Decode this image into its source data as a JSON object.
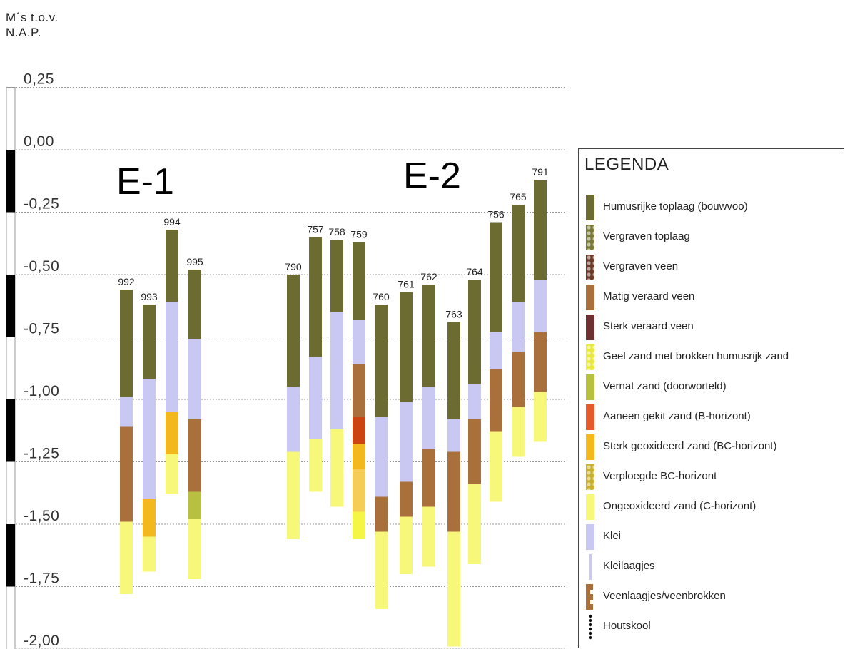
{
  "axis": {
    "unit_label": [
      "M´s  t.o.v.",
      "N.A.P."
    ],
    "ticks": [
      {
        "value": 0.25,
        "label": "0,25"
      },
      {
        "value": 0.0,
        "label": "0,00"
      },
      {
        "value": -0.25,
        "label": "-0,25"
      },
      {
        "value": -0.5,
        "label": "-0,50"
      },
      {
        "value": -0.75,
        "label": "-0,75"
      },
      {
        "value": -1.0,
        "label": "-1,00"
      },
      {
        "value": -1.25,
        "label": "-1,25"
      },
      {
        "value": -1.5,
        "label": "-1,50"
      },
      {
        "value": -1.75,
        "label": "-1,75"
      },
      {
        "value": -2.0,
        "label": "-2,00"
      }
    ]
  },
  "groups": [
    {
      "label": "E-1"
    },
    {
      "label": "E-2"
    }
  ],
  "colors": {
    "humus": "#6b6b32",
    "vergraven_toplaag": "#7a7a3a",
    "vergraven_veen": "#6b3a2a",
    "matig_veen": "#a9703c",
    "sterk_veen": "#6e3030",
    "geel_zand": "#e8e840",
    "vernat_zand": "#b8c040",
    "b_horizont": "#e55a2a",
    "bc_horizont": "#f2b81e",
    "verploegd_bc": "#c8b030",
    "c_horizont": "#f7f77a",
    "klei": "#c8c8f2",
    "kleilaagjes": "#c8c8f2",
    "veenlaagjes": "#a9703c",
    "houtskool": "#111111",
    "b_horizont_bright": "#cc4410",
    "bc_light": "#f5cc55",
    "c_bright": "#f5f545"
  },
  "cores": [
    {
      "id": "992",
      "layers": [
        {
          "top": -0.56,
          "bottom": -0.99,
          "type": "humus"
        },
        {
          "top": -0.99,
          "bottom": -1.11,
          "type": "klei"
        },
        {
          "top": -1.11,
          "bottom": -1.49,
          "type": "matig_veen"
        },
        {
          "top": -1.49,
          "bottom": -1.78,
          "type": "c_horizont"
        }
      ]
    },
    {
      "id": "993",
      "layers": [
        {
          "top": -0.62,
          "bottom": -0.92,
          "type": "humus"
        },
        {
          "top": -0.92,
          "bottom": -1.4,
          "type": "klei"
        },
        {
          "top": -1.4,
          "bottom": -1.55,
          "type": "bc_horizont"
        },
        {
          "top": -1.55,
          "bottom": -1.69,
          "type": "c_horizont"
        }
      ]
    },
    {
      "id": "994",
      "layers": [
        {
          "top": -0.32,
          "bottom": -0.61,
          "type": "humus"
        },
        {
          "top": -0.61,
          "bottom": -1.05,
          "type": "klei"
        },
        {
          "top": -1.05,
          "bottom": -1.22,
          "type": "bc_horizont"
        },
        {
          "top": -1.22,
          "bottom": -1.38,
          "type": "c_horizont"
        }
      ]
    },
    {
      "id": "995",
      "layers": [
        {
          "top": -0.48,
          "bottom": -0.76,
          "type": "humus"
        },
        {
          "top": -0.76,
          "bottom": -1.08,
          "type": "klei"
        },
        {
          "top": -1.08,
          "bottom": -1.37,
          "type": "matig_veen"
        },
        {
          "top": -1.37,
          "bottom": -1.48,
          "type": "vernat_zand"
        },
        {
          "top": -1.48,
          "bottom": -1.72,
          "type": "c_horizont"
        }
      ]
    },
    {
      "id": "790",
      "layers": [
        {
          "top": -0.5,
          "bottom": -0.95,
          "type": "humus"
        },
        {
          "top": -0.95,
          "bottom": -1.21,
          "type": "klei"
        },
        {
          "top": -1.21,
          "bottom": -1.56,
          "type": "c_horizont"
        }
      ]
    },
    {
      "id": "757",
      "layers": [
        {
          "top": -0.35,
          "bottom": -0.83,
          "type": "humus"
        },
        {
          "top": -0.83,
          "bottom": -1.16,
          "type": "klei"
        },
        {
          "top": -1.16,
          "bottom": -1.37,
          "type": "c_horizont"
        }
      ]
    },
    {
      "id": "758",
      "layers": [
        {
          "top": -0.36,
          "bottom": -0.65,
          "type": "humus"
        },
        {
          "top": -0.65,
          "bottom": -1.12,
          "type": "klei"
        },
        {
          "top": -1.12,
          "bottom": -1.43,
          "type": "c_horizont"
        }
      ]
    },
    {
      "id": "759",
      "layers": [
        {
          "top": -0.37,
          "bottom": -0.68,
          "type": "humus"
        },
        {
          "top": -0.68,
          "bottom": -0.86,
          "type": "klei"
        },
        {
          "top": -0.86,
          "bottom": -1.07,
          "type": "matig_veen"
        },
        {
          "top": -1.07,
          "bottom": -1.18,
          "type": "b_horizont_bright"
        },
        {
          "top": -1.18,
          "bottom": -1.28,
          "type": "bc_horizont"
        },
        {
          "top": -1.28,
          "bottom": -1.45,
          "type": "bc_light"
        },
        {
          "top": -1.45,
          "bottom": -1.56,
          "type": "c_bright"
        }
      ]
    },
    {
      "id": "760",
      "layers": [
        {
          "top": -0.62,
          "bottom": -1.07,
          "type": "humus"
        },
        {
          "top": -1.07,
          "bottom": -1.39,
          "type": "klei"
        },
        {
          "top": -1.39,
          "bottom": -1.53,
          "type": "matig_veen"
        },
        {
          "top": -1.53,
          "bottom": -1.84,
          "type": "c_horizont"
        }
      ]
    },
    {
      "id": "761",
      "layers": [
        {
          "top": -0.57,
          "bottom": -1.01,
          "type": "humus"
        },
        {
          "top": -1.01,
          "bottom": -1.33,
          "type": "klei"
        },
        {
          "top": -1.33,
          "bottom": -1.47,
          "type": "matig_veen"
        },
        {
          "top": -1.47,
          "bottom": -1.7,
          "type": "c_horizont"
        }
      ]
    },
    {
      "id": "762",
      "layers": [
        {
          "top": -0.54,
          "bottom": -0.95,
          "type": "humus"
        },
        {
          "top": -0.95,
          "bottom": -1.2,
          "type": "klei"
        },
        {
          "top": -1.2,
          "bottom": -1.43,
          "type": "matig_veen"
        },
        {
          "top": -1.43,
          "bottom": -1.67,
          "type": "c_horizont"
        }
      ]
    },
    {
      "id": "763",
      "layers": [
        {
          "top": -0.69,
          "bottom": -1.08,
          "type": "humus"
        },
        {
          "top": -1.08,
          "bottom": -1.21,
          "type": "klei"
        },
        {
          "top": -1.21,
          "bottom": -1.53,
          "type": "matig_veen"
        },
        {
          "top": -1.53,
          "bottom": -1.99,
          "type": "c_horizont"
        }
      ]
    },
    {
      "id": "764",
      "layers": [
        {
          "top": -0.52,
          "bottom": -0.94,
          "type": "humus"
        },
        {
          "top": -0.94,
          "bottom": -1.08,
          "type": "klei"
        },
        {
          "top": -1.08,
          "bottom": -1.34,
          "type": "matig_veen"
        },
        {
          "top": -1.34,
          "bottom": -1.66,
          "type": "c_horizont"
        }
      ]
    },
    {
      "id": "756",
      "layers": [
        {
          "top": -0.29,
          "bottom": -0.73,
          "type": "humus"
        },
        {
          "top": -0.73,
          "bottom": -0.88,
          "type": "klei"
        },
        {
          "top": -0.88,
          "bottom": -1.13,
          "type": "matig_veen"
        },
        {
          "top": -1.13,
          "bottom": -1.41,
          "type": "c_horizont"
        }
      ]
    },
    {
      "id": "765",
      "layers": [
        {
          "top": -0.22,
          "bottom": -0.61,
          "type": "humus"
        },
        {
          "top": -0.61,
          "bottom": -0.81,
          "type": "klei"
        },
        {
          "top": -0.81,
          "bottom": -1.03,
          "type": "matig_veen"
        },
        {
          "top": -1.03,
          "bottom": -1.23,
          "type": "c_horizont"
        }
      ]
    },
    {
      "id": "791",
      "layers": [
        {
          "top": -0.12,
          "bottom": -0.52,
          "type": "humus"
        },
        {
          "top": -0.52,
          "bottom": -0.73,
          "type": "klei"
        },
        {
          "top": -0.73,
          "bottom": -0.97,
          "type": "matig_veen"
        },
        {
          "top": -0.97,
          "bottom": -1.17,
          "type": "c_horizont"
        }
      ]
    }
  ],
  "legend": {
    "title": "LEGENDA",
    "items": [
      {
        "label": "Humusrijke toplaag (bouwvoo)",
        "type": "humus",
        "pattern": "solid"
      },
      {
        "label": "Vergraven toplaag",
        "type": "vergraven_toplaag",
        "pattern": "dots"
      },
      {
        "label": "Vergraven veen",
        "type": "vergraven_veen",
        "pattern": "dots"
      },
      {
        "label": "Matig  veraard veen",
        "type": "matig_veen",
        "pattern": "solid"
      },
      {
        "label": "Sterk veraard veen",
        "type": "sterk_veen",
        "pattern": "solid"
      },
      {
        "label": "Geel zand met brokken humusrijk zand",
        "type": "geel_zand",
        "pattern": "dots"
      },
      {
        "label": "Vernat zand (doorworteld)",
        "type": "vernat_zand",
        "pattern": "solid"
      },
      {
        "label": "Aaneen gekit zand (B-horizont)",
        "type": "b_horizont",
        "pattern": "solid"
      },
      {
        "label": "Sterk geoxideerd zand (BC-horizont)",
        "type": "bc_horizont",
        "pattern": "solid"
      },
      {
        "label": "Verploegde BC-horizont",
        "type": "verploegd_bc",
        "pattern": "dots"
      },
      {
        "label": "Ongeoxideerd zand (C-horizont)",
        "type": "c_horizont",
        "pattern": "solid"
      },
      {
        "label": "Klei",
        "type": "klei",
        "pattern": "solid"
      },
      {
        "label": "Kleilaagjes",
        "type": "kleilaagjes",
        "pattern": "thin"
      },
      {
        "label": "Veenlaagjes/veenbrokken",
        "type": "veenlaagjes",
        "pattern": "dashes"
      },
      {
        "label": "Houtskool",
        "type": "houtskool",
        "pattern": "dotsline"
      }
    ]
  }
}
